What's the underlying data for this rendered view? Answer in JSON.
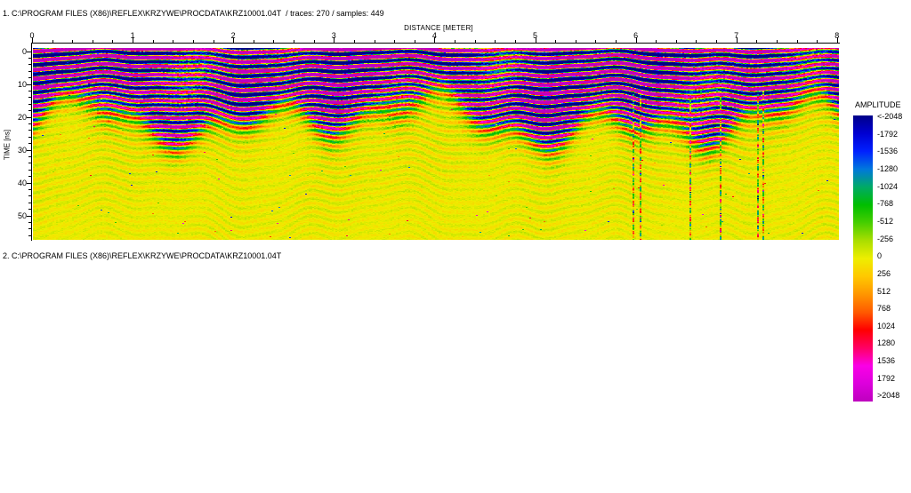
{
  "header": {
    "line1": "1. C:\\PROGRAM FILES (X86)\\REFLEX\\KRZYWE\\PROCDATA\\KRZ10001.04T  / traces: 270 / samples: 449",
    "line2": "2. C:\\PROGRAM FILES (X86)\\REFLEX\\KRZYWE\\PROCDATA\\KRZ10001.04T"
  },
  "chart_data": {
    "type": "heatmap",
    "title": "1. C:\\PROGRAM FILES (X86)\\REFLEX\\KRZYWE\\PROCDATA\\KRZ10001.04T  / traces: 270 / samples: 449",
    "xlabel": "DISTANCE [METER]",
    "ylabel": "TIME [ns]",
    "x_range": [
      0,
      8.02
    ],
    "y_range": [
      0,
      58.5
    ],
    "x_major_ticks": [
      0,
      1,
      2,
      3,
      4,
      5,
      6,
      7,
      8
    ],
    "x_minor_step": 0.2,
    "y_major_ticks": [
      0,
      10,
      20,
      30,
      40,
      50
    ],
    "y_minor_step": 2,
    "traces": 270,
    "samples": 449,
    "grid": false,
    "legend_position": "right",
    "colorbar": {
      "title": "AMPLITUDE",
      "stops": [
        {
          "label": "<-2048",
          "value": -2048,
          "color": "#000088"
        },
        {
          "label": "-1792",
          "value": -1792,
          "color": "#0000D2"
        },
        {
          "label": "-1536",
          "value": -1536,
          "color": "#0020FF"
        },
        {
          "label": "-1280",
          "value": -1280,
          "color": "#0078DC"
        },
        {
          "label": "-1024",
          "value": -1024,
          "color": "#00AA66"
        },
        {
          "label": "-768",
          "value": -768,
          "color": "#00BE00"
        },
        {
          "label": "-512",
          "value": -512,
          "color": "#46CE00"
        },
        {
          "label": "-256",
          "value": -256,
          "color": "#AADE00"
        },
        {
          "label": "0",
          "value": 0,
          "color": "#EEEE00"
        },
        {
          "label": "256",
          "value": 256,
          "color": "#FFC800"
        },
        {
          "label": "512",
          "value": 512,
          "color": "#FF9600"
        },
        {
          "label": "768",
          "value": 768,
          "color": "#FF5A00"
        },
        {
          "label": "1024",
          "value": 1024,
          "color": "#FF0000"
        },
        {
          "label": "1280",
          "value": 1280,
          "color": "#FF0064"
        },
        {
          "label": "1536",
          "value": 1536,
          "color": "#FA00E6"
        },
        {
          "label": "1792",
          "value": 1792,
          "color": "#DC00DC"
        },
        {
          "label": ">2048",
          "value": 2048,
          "color": "#BE00BE"
        }
      ]
    },
    "content_summary": "GPR radargram (REFLEXW): saturated high-amplitude reflections shown as alternating wavy navy-blue and magenta/purple horizontal bands from 0 ns down to an undulating boundary at ~15-30 ns; a transition zone of green / red / yellow banding around 18-30 ns; weak amplitudes below ~30 ns rendered as a yellow background with faint green and orange horizontal streaks plus a few noisy vertical artifact columns with scattered high-amplitude speckles."
  }
}
